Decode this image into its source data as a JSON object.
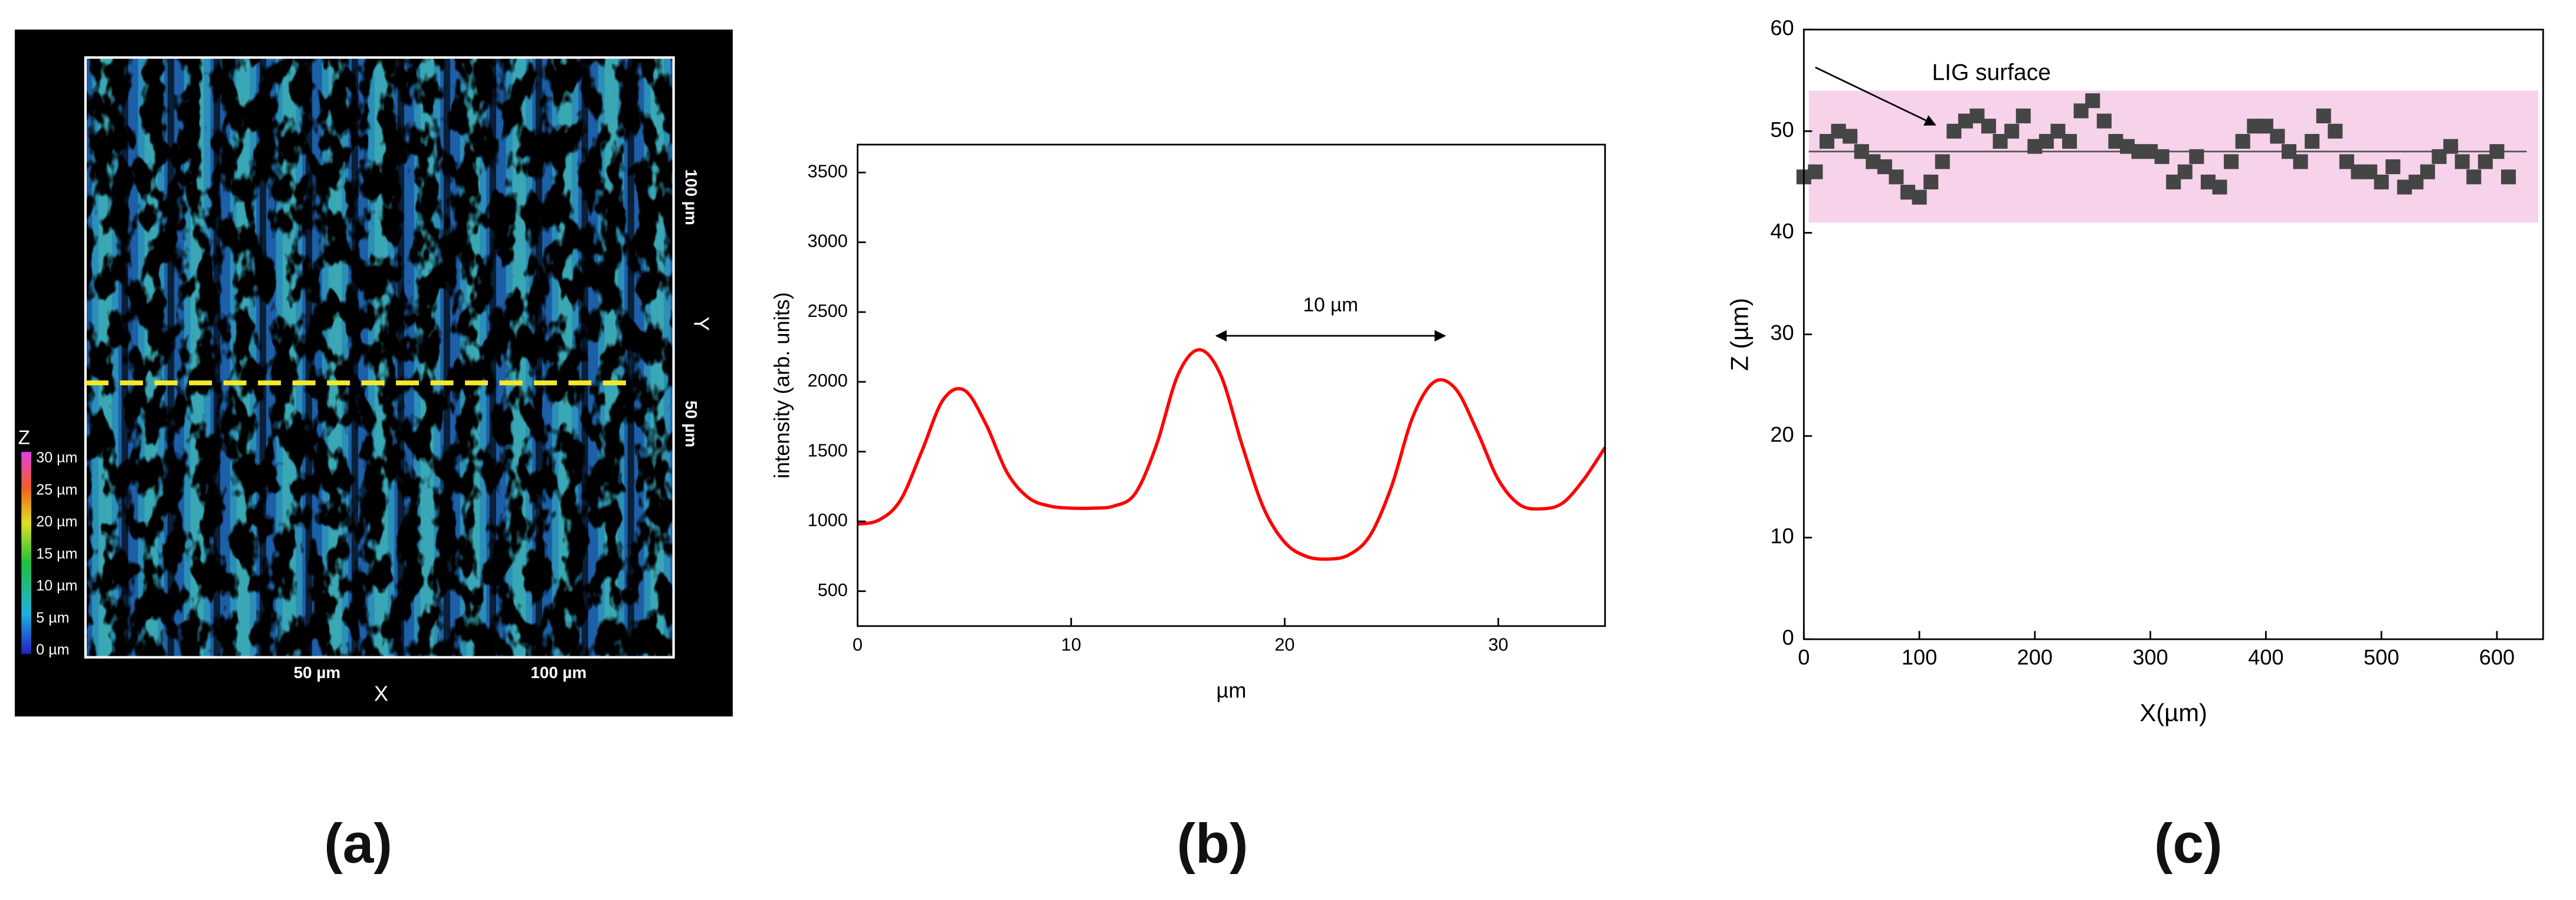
{
  "panel_labels": [
    "(a)",
    "(b)",
    "(c)"
  ],
  "image_panel": {
    "z_label": "Z",
    "colorbar_labels": [
      "30 µm",
      "25 µm",
      "20 µm",
      "15 µm",
      "10 µm",
      "5 µm",
      "0 µm"
    ],
    "x_label": "X",
    "y_label": "Y",
    "x_tick_labels": [
      "50 µm",
      "100 µm"
    ],
    "y_tick_labels": [
      "100 µm",
      "50 µm"
    ]
  },
  "chart_data": [
    {
      "type": "line",
      "x_label": "µm",
      "y_label": "intensity (arb. units)",
      "color": "#ff0000",
      "x": [
        0,
        1,
        2,
        3,
        4,
        5,
        6,
        7,
        8,
        9,
        10,
        11,
        12,
        13,
        14,
        15,
        16,
        17,
        18,
        19,
        20,
        21,
        22,
        23,
        24,
        25,
        26,
        27,
        28,
        29,
        30,
        31,
        32,
        33,
        34,
        35
      ],
      "values": [
        980,
        1010,
        1150,
        1500,
        1870,
        1940,
        1700,
        1350,
        1170,
        1110,
        1095,
        1095,
        1110,
        1200,
        1550,
        2050,
        2230,
        2050,
        1550,
        1100,
        850,
        750,
        730,
        760,
        900,
        1250,
        1750,
        2000,
        1950,
        1650,
        1300,
        1120,
        1090,
        1130,
        1300,
        1530
      ],
      "xlim": [
        0,
        35
      ],
      "ylim": [
        250,
        3700
      ],
      "xticks": [
        0,
        10,
        20,
        30
      ],
      "yticks": [
        500,
        1000,
        1500,
        2000,
        2500,
        3000,
        3500
      ],
      "annotation": {
        "text": "10 µm",
        "x": [
          16.8,
          27.5
        ],
        "y": 2330
      }
    },
    {
      "type": "scatter",
      "x_label": "X(µm)",
      "y_label": "Z (µm)",
      "color": "#454545",
      "x": [
        0,
        10,
        20,
        30,
        40,
        50,
        60,
        70,
        80,
        90,
        100,
        110,
        120,
        130,
        140,
        150,
        160,
        170,
        180,
        190,
        200,
        210,
        220,
        230,
        240,
        250,
        260,
        270,
        280,
        290,
        300,
        310,
        320,
        330,
        340,
        350,
        360,
        370,
        380,
        390,
        400,
        410,
        420,
        430,
        440,
        450,
        460,
        470,
        480,
        490,
        500,
        510,
        520,
        530,
        540,
        550,
        560,
        570,
        580,
        590,
        600,
        610
      ],
      "values": [
        45.5,
        46,
        49,
        50,
        49.5,
        48,
        47,
        46.5,
        45.5,
        44,
        43.5,
        45,
        47,
        50,
        51,
        51.5,
        50.5,
        49,
        50,
        51.5,
        48.5,
        49,
        50,
        49,
        52,
        53,
        51,
        49,
        48.5,
        48,
        48,
        47.5,
        45,
        46,
        47.5,
        45,
        44.5,
        47,
        49,
        50.5,
        50.5,
        49.5,
        48,
        47,
        49,
        51.5,
        50,
        47,
        46,
        46,
        45,
        46.5,
        44.5,
        45,
        46,
        47.5,
        48.5,
        47,
        45.5,
        47,
        48,
        45.5
      ],
      "xlim": [
        0,
        640
      ],
      "ylim": [
        0,
        60
      ],
      "xticks": [
        0,
        100,
        200,
        300,
        400,
        500,
        600
      ],
      "yticks": [
        0,
        10,
        20,
        30,
        40,
        50,
        60
      ],
      "band": {
        "ylim": [
          41,
          54
        ],
        "color": "#f6d3ea"
      },
      "hline": 48,
      "annotation": {
        "text": "LIG surface"
      }
    }
  ]
}
